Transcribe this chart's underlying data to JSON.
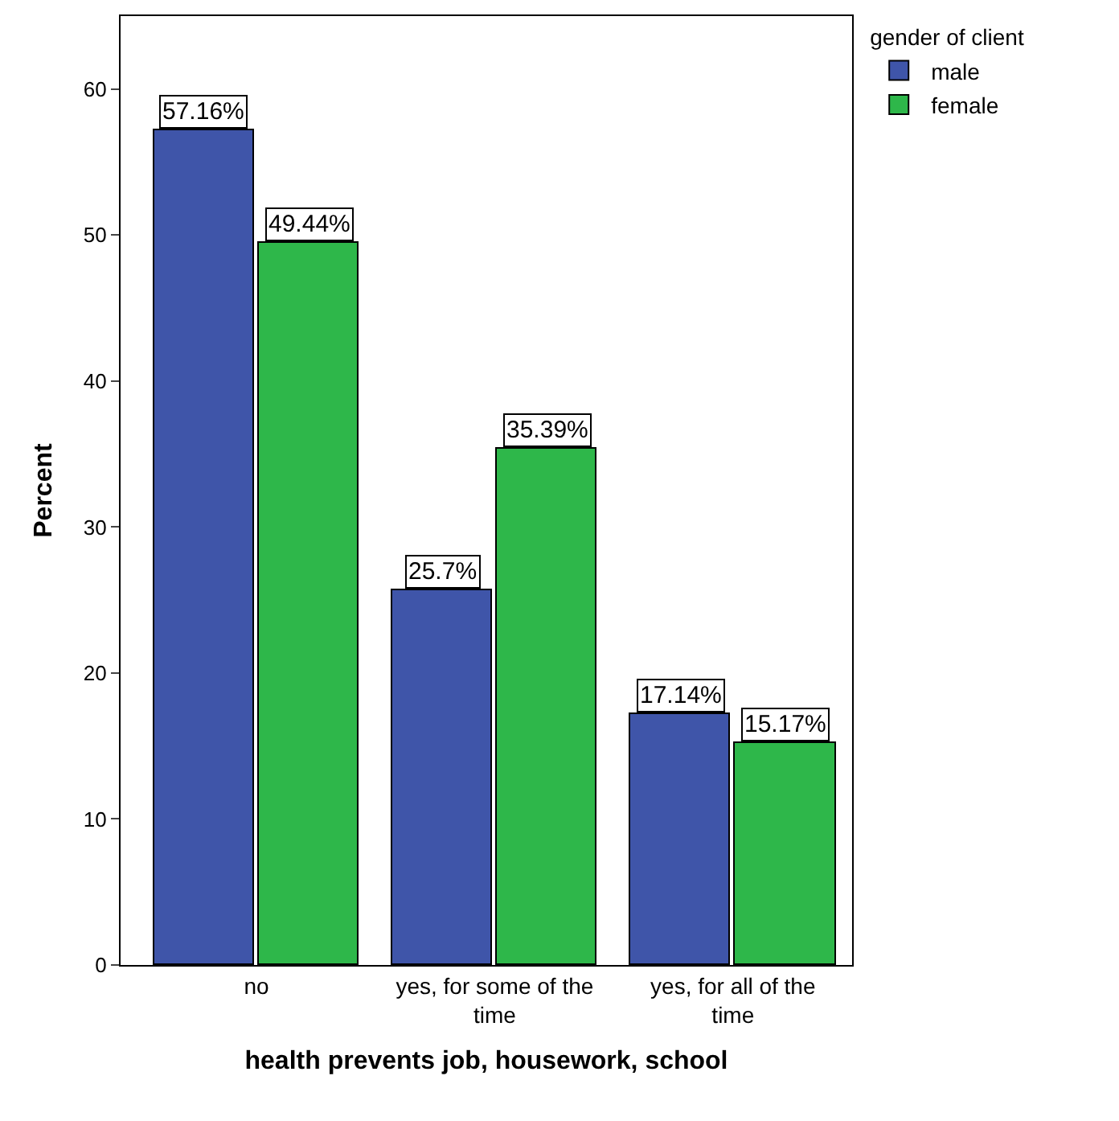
{
  "chart_data": {
    "type": "bar",
    "xlabel": "health prevents job, housework, school",
    "ylabel": "Percent",
    "legend_title": "gender of client",
    "categories": [
      "no",
      "yes, for some of the time",
      "yes, for all of the time"
    ],
    "series": [
      {
        "name": "male",
        "color": "#3f55a9",
        "values": [
          57.16,
          25.7,
          17.14
        ],
        "value_labels": [
          "57.16%",
          "25.7%",
          "17.14%"
        ]
      },
      {
        "name": "female",
        "color": "#2eb74a",
        "values": [
          49.44,
          35.39,
          15.17
        ],
        "value_labels": [
          "49.44%",
          "35.39%",
          "15.17%"
        ]
      }
    ],
    "ylim": [
      0,
      65
    ],
    "yticks": [
      0,
      10,
      20,
      30,
      40,
      50,
      60
    ],
    "legend": "top right"
  }
}
